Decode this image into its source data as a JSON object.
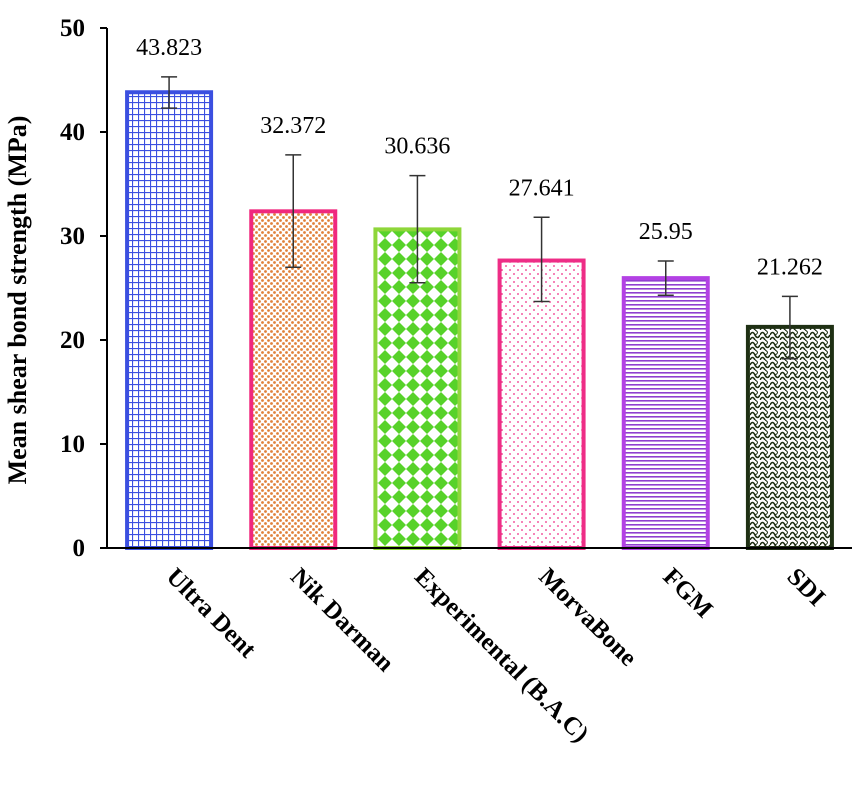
{
  "chart_data": {
    "type": "bar",
    "title": "",
    "xlabel": "",
    "ylabel": "Mean shear bond strength (MPa)",
    "ylim": [
      0,
      50
    ],
    "yticks": [
      0,
      10,
      20,
      30,
      40,
      50
    ],
    "grid": false,
    "legend": "none",
    "categories": [
      "Ultra Dent",
      "Nik Darman",
      "Experimental (B.A.C)",
      "MorvaBone",
      "FGM",
      "SDI"
    ],
    "values": [
      43.823,
      32.372,
      30.636,
      27.641,
      25.95,
      21.262
    ],
    "value_labels": [
      "43.823",
      "32.372",
      "30.636",
      "27.641",
      "25.95",
      "21.262"
    ],
    "error_low": [
      42.3,
      27.0,
      25.5,
      23.7,
      24.3,
      18.2
    ],
    "error_high": [
      45.3,
      37.8,
      35.8,
      31.8,
      27.6,
      24.2
    ],
    "bar_colors": [
      "#3b4fe0",
      "#f0287e",
      "#8ed63a",
      "#ee2d86",
      "#b341e4",
      "#1f3014"
    ],
    "bar_patterns": [
      "grid",
      "dots-orange",
      "diamonds-green",
      "dots-pink",
      "hstripes",
      "weave"
    ]
  }
}
